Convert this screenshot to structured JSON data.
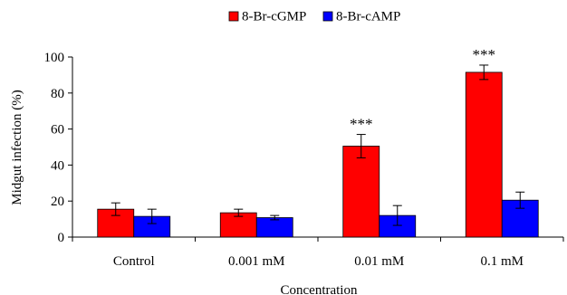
{
  "chart_data": {
    "type": "bar",
    "xlabel": "Concentration",
    "ylabel": "Midgut infection (%)",
    "categories": [
      "Control",
      "0.001 mM",
      "0.01 mM",
      "0.1 mM"
    ],
    "ylim": [
      0,
      100
    ],
    "yticks": [
      0,
      20,
      40,
      60,
      80,
      100
    ],
    "grid": false,
    "legend_position": "top-center",
    "series": [
      {
        "name": "8-Br-cGMP",
        "color": "#ff0000",
        "values": [
          15.5,
          13.5,
          50.5,
          91.5
        ],
        "errors": [
          3.5,
          2.0,
          6.5,
          4.0
        ]
      },
      {
        "name": "8-Br-cAMP",
        "color": "#0000ff",
        "values": [
          11.5,
          10.8,
          12.0,
          20.5
        ],
        "errors": [
          4.0,
          1.2,
          5.5,
          4.5
        ]
      }
    ],
    "annotations": [
      {
        "category_index": 2,
        "series_index": 0,
        "text": "***"
      },
      {
        "category_index": 3,
        "series_index": 0,
        "text": "***"
      }
    ]
  }
}
